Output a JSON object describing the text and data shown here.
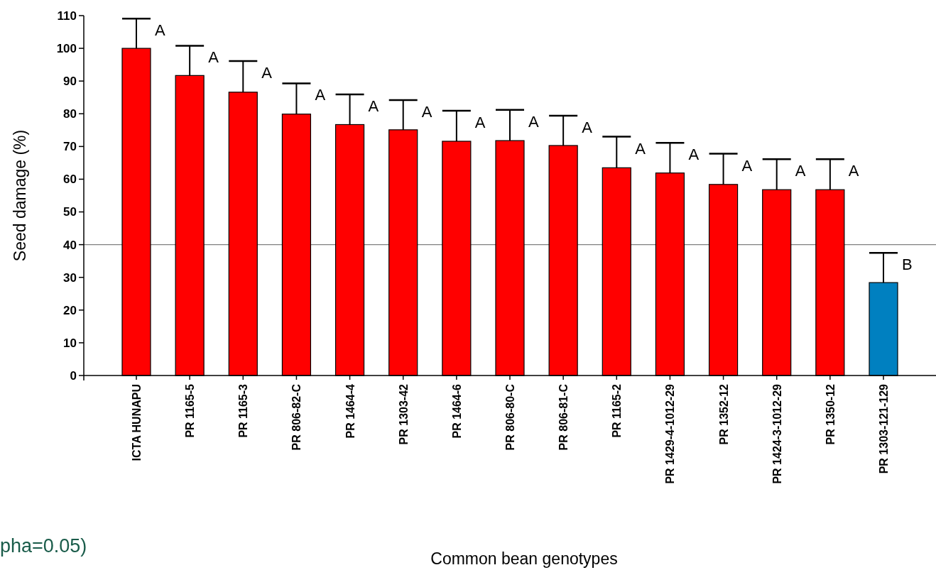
{
  "chart_data": {
    "type": "bar",
    "xlabel": "Common bean genotypes",
    "ylabel": "Seed damage (%)",
    "categories": [
      "ICTA HUNAPU",
      "PR 1165-5",
      "PR 1165-3",
      "PR 806-82-C",
      "PR 1464-4",
      "PR 1303-42",
      "PR 1464-6",
      "PR 806-80-C",
      "PR 806-81-C",
      "PR 1165-2",
      "PR 1429-4-1012-29",
      "PR 1352-12",
      "PR 1424-3-1012-29",
      "PR 1350-12",
      "PR 1303-121-129"
    ],
    "values": [
      100,
      91.7,
      86.6,
      79.9,
      76.7,
      75.1,
      71.6,
      71.8,
      70.3,
      63.5,
      61.9,
      58.4,
      56.8,
      56.8,
      28.4
    ],
    "errors": [
      [
        100,
        109.1
      ],
      [
        91.7,
        100.8
      ],
      [
        86.6,
        96.1
      ],
      [
        79.9,
        89.3
      ],
      [
        76.7,
        85.9
      ],
      [
        75.1,
        84.2
      ],
      [
        71.6,
        80.9
      ],
      [
        71.8,
        81.2
      ],
      [
        70.3,
        79.4
      ],
      [
        63.5,
        73.0
      ],
      [
        61.9,
        71.1
      ],
      [
        58.4,
        67.8
      ],
      [
        56.8,
        66.1
      ],
      [
        56.8,
        66.1
      ],
      [
        28.4,
        37.5
      ]
    ],
    "colors": [
      "#ff0000",
      "#ff0000",
      "#ff0000",
      "#ff0000",
      "#ff0000",
      "#ff0000",
      "#ff0000",
      "#ff0000",
      "#ff0000",
      "#ff0000",
      "#ff0000",
      "#ff0000",
      "#ff0000",
      "#ff0000",
      "#0080c0"
    ],
    "ylim": [
      0,
      110
    ],
    "yticks": [
      0,
      10,
      20,
      30,
      40,
      50,
      60,
      70,
      80,
      90,
      100,
      110
    ],
    "ref_lines": [
      {
        "axis": "y",
        "value": 40,
        "color": "#808080"
      }
    ],
    "annotations": [
      {
        "text": "A",
        "x": "ICTA HUNAPU",
        "y": 109.1
      },
      {
        "text": "A",
        "x": "PR 1165-5",
        "y": 100.8
      },
      {
        "text": "A",
        "x": "PR 1165-3",
        "y": 96.1
      },
      {
        "text": "A",
        "x": "PR 806-82-C",
        "y": 89.3
      },
      {
        "text": "A",
        "x": "PR 1464-4",
        "y": 85.9
      },
      {
        "text": "A",
        "x": "PR 1303-42",
        "y": 84.2
      },
      {
        "text": "A",
        "x": "PR 1464-6",
        "y": 80.9
      },
      {
        "text": "A",
        "x": "PR 806-80-C",
        "y": 81.2
      },
      {
        "text": "A",
        "x": "PR 806-81-C",
        "y": 79.4
      },
      {
        "text": "A",
        "x": "PR 1165-2",
        "y": 73.0
      },
      {
        "text": "A",
        "x": "PR 1429-4-1012-29",
        "y": 71.1
      },
      {
        "text": "A",
        "x": "PR 1352-12",
        "y": 67.8
      },
      {
        "text": "A",
        "x": "PR 1424-3-1012-29",
        "y": 66.1
      },
      {
        "text": "A",
        "x": "PR 1350-12",
        "y": 66.1
      },
      {
        "text": "B",
        "x": "PR 1303-121-129",
        "y": 37.5
      },
      "pha=0.05)"
    ]
  }
}
